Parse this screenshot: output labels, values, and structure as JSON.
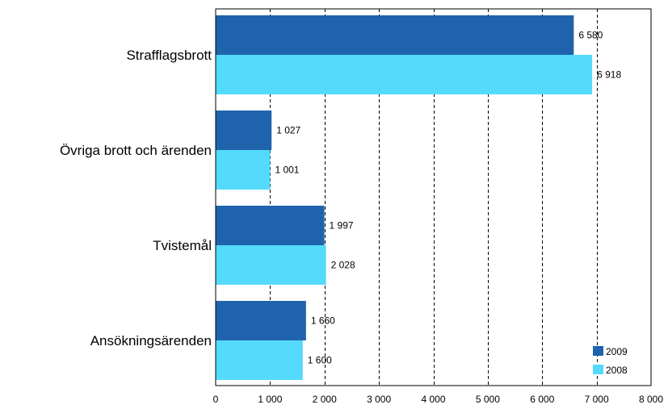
{
  "chart_data": {
    "type": "bar",
    "orientation": "horizontal",
    "categories": [
      "Strafflagsbrott",
      "Övriga brott och ärenden",
      "Tvistemål",
      "Ansökningsärenden"
    ],
    "series": [
      {
        "name": "2009",
        "values": [
          6580,
          1027,
          1997,
          1660
        ],
        "labels": [
          "6 580",
          "1 027",
          "1 997",
          "1 660"
        ],
        "color": "#1f63ad"
      },
      {
        "name": "2008",
        "values": [
          6918,
          1001,
          2028,
          1600
        ],
        "labels": [
          "6 918",
          "1 001",
          "2 028",
          "1 600"
        ],
        "color": "#54dafc"
      }
    ],
    "xlim": [
      0,
      8000
    ],
    "ticks": [
      0,
      1000,
      2000,
      3000,
      4000,
      5000,
      6000,
      7000,
      8000
    ],
    "tick_labels": [
      "0",
      "1 000",
      "2 000",
      "3 000",
      "4 000",
      "5 000",
      "6 000",
      "7 000",
      "8 000"
    ],
    "grid": "vertical dashed",
    "legend_position": "bottom-right",
    "title": "",
    "xlabel": "",
    "ylabel": ""
  }
}
